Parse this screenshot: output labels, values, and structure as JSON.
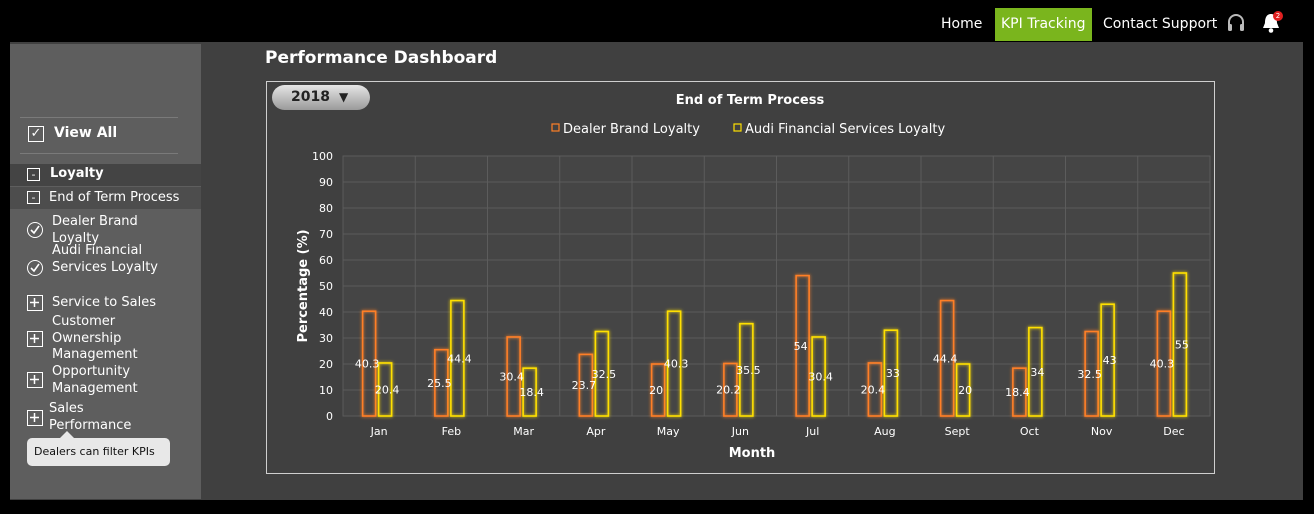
{
  "nav": {
    "home": "Home",
    "kpi": "KPI Tracking",
    "contact": "Contact Support",
    "notifications": "2"
  },
  "page_title": "Performance Dashboard",
  "year_selector": "2018",
  "sidebar": {
    "view_all": "View All",
    "groups": [
      {
        "label": "Loyalty"
      },
      {
        "label": "End of Term Process"
      }
    ],
    "items": [
      {
        "label": "Dealer Brand Loyalty",
        "icon": "check-circle-icon"
      },
      {
        "label": "Audi Financial Services Loyalty",
        "icon": "check-circle-icon"
      },
      {
        "label": "Service to Sales",
        "icon": "plus-box-icon"
      },
      {
        "label": "Customer Ownership Management",
        "icon": "plus-box-icon"
      },
      {
        "label": "Opportunity Management",
        "icon": "plus-box-icon"
      },
      {
        "label": "Sales Performance",
        "icon": "plus-box-icon"
      }
    ],
    "tooltip": "Dealers can filter KPIs"
  },
  "colors": {
    "accent": "#7ab51d",
    "series1": "#ff7f27",
    "series2": "#ffe000",
    "panel": "#404040"
  },
  "chart_data": {
    "type": "bar",
    "title": "End of Term Process",
    "xlabel": "Month",
    "ylabel": "Percentage (%)",
    "ylim": [
      0,
      100
    ],
    "yticks": [
      0,
      10,
      20,
      30,
      40,
      50,
      60,
      70,
      80,
      90,
      100
    ],
    "grid": true,
    "legend_position": "top-center",
    "categories": [
      "Jan",
      "Feb",
      "Mar",
      "Apr",
      "May",
      "Jun",
      "Jul",
      "Aug",
      "Sept",
      "Oct",
      "Nov",
      "Dec"
    ],
    "series": [
      {
        "name": "Dealer Brand Loyalty",
        "color": "#ff7f27",
        "values": [
          40.3,
          25.5,
          30.4,
          23.7,
          20,
          20.2,
          54,
          20.4,
          44.4,
          18.4,
          32.5,
          40.3
        ]
      },
      {
        "name": "Audi Financial Services Loyalty",
        "color": "#ffe000",
        "values": [
          20.4,
          44.4,
          18.4,
          32.5,
          40.3,
          35.5,
          30.4,
          33,
          20,
          34,
          43,
          55
        ]
      }
    ]
  }
}
